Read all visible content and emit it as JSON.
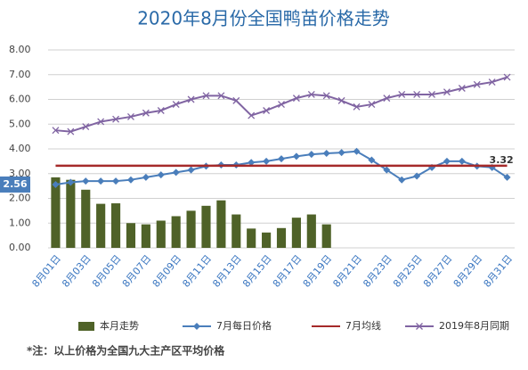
{
  "chart_data": {
    "type": "bar",
    "title": "2020年8月份全国鸭苗价格走势",
    "note": "*注：以上价格为全国九大主产区平均价格",
    "categories": [
      "8月01日",
      null,
      "8月03日",
      null,
      "8月05日",
      null,
      "8月07日",
      null,
      "8月09日",
      null,
      "8月11日",
      null,
      "8月13日",
      null,
      "8月15日",
      null,
      "8月17日",
      null,
      "8月19日",
      null,
      "8月21日",
      null,
      "8月23日",
      null,
      "8月25日",
      null,
      "8月27日",
      null,
      "8月29日",
      null,
      "8月31日"
    ],
    "ylim": [
      0,
      8
    ],
    "yticks": [
      {
        "value": 0,
        "label": "0.00"
      },
      {
        "value": 1,
        "label": "1.00"
      },
      {
        "value": 2,
        "label": "2.00"
      },
      {
        "value": 3,
        "label": "3.00"
      },
      {
        "value": 4,
        "label": "4.00"
      },
      {
        "value": 5,
        "label": "5.00"
      },
      {
        "value": 6,
        "label": "6.00"
      },
      {
        "value": 7,
        "label": "7.00"
      },
      {
        "value": 8,
        "label": "8.00"
      }
    ],
    "grid": true,
    "legend": "bottom",
    "series": [
      {
        "name": "本月走势",
        "type": "bar",
        "color": "#4f6228",
        "values": [
          2.85,
          2.75,
          2.35,
          1.78,
          1.8,
          1.0,
          0.95,
          1.1,
          1.28,
          1.5,
          1.7,
          1.92,
          1.35,
          0.78,
          0.62,
          0.8,
          1.22,
          1.35,
          0.95,
          null,
          null,
          null,
          null,
          null,
          null,
          null,
          null,
          null,
          null,
          null,
          null
        ]
      },
      {
        "name": "7月每日价格",
        "type": "line",
        "marker": "diamond",
        "color": "#4a7ebb",
        "values": [
          2.56,
          2.65,
          2.7,
          2.7,
          2.7,
          2.75,
          2.85,
          2.95,
          3.05,
          3.15,
          3.3,
          3.35,
          3.35,
          3.45,
          3.5,
          3.6,
          3.7,
          3.78,
          3.82,
          3.85,
          3.9,
          3.55,
          3.15,
          2.75,
          2.9,
          3.25,
          3.5,
          3.5,
          3.3,
          3.25,
          2.85
        ],
        "value_labels": [
          "2.56",
          null,
          null,
          null,
          null,
          null,
          null,
          null,
          null,
          null,
          null,
          null,
          null,
          null,
          null,
          null,
          null,
          null,
          null,
          null,
          null,
          null,
          null,
          null,
          null,
          null,
          null,
          null,
          null,
          null,
          null
        ]
      },
      {
        "name": "7月均线",
        "type": "line",
        "marker": "none",
        "color": "#a52a2a",
        "values": [
          3.32,
          3.32,
          3.32,
          3.32,
          3.32,
          3.32,
          3.32,
          3.32,
          3.32,
          3.32,
          3.32,
          3.32,
          3.32,
          3.32,
          3.32,
          3.32,
          3.32,
          3.32,
          3.32,
          3.32,
          3.32,
          3.32,
          3.32,
          3.32,
          3.32,
          3.32,
          3.32,
          3.32,
          3.32,
          3.32,
          3.32
        ],
        "value_labels": [
          null,
          null,
          null,
          null,
          null,
          null,
          null,
          null,
          null,
          null,
          null,
          null,
          null,
          null,
          null,
          null,
          null,
          null,
          null,
          null,
          null,
          null,
          null,
          null,
          null,
          null,
          null,
          null,
          null,
          null,
          "3.32"
        ]
      },
      {
        "name": "2019年8月同期",
        "type": "line",
        "marker": "x",
        "color": "#8064a2",
        "values": [
          4.75,
          4.7,
          4.9,
          5.1,
          5.2,
          5.3,
          5.45,
          5.55,
          5.8,
          6.0,
          6.15,
          6.15,
          5.95,
          5.35,
          5.55,
          5.8,
          6.05,
          6.2,
          6.15,
          5.95,
          5.7,
          5.8,
          6.05,
          6.2,
          6.2,
          6.2,
          6.3,
          6.45,
          6.6,
          6.7,
          6.9
        ]
      }
    ]
  }
}
